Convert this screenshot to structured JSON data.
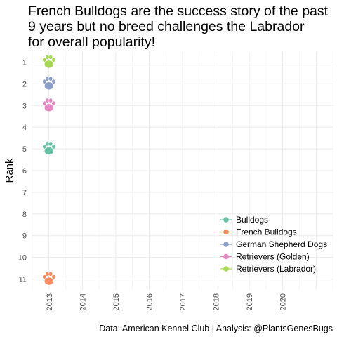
{
  "chart_data": {
    "type": "scatter",
    "title_lines": [
      "French Bulldogs are the success story of the past",
      "9 years but no breed challenges the Labrador",
      "for overall popularity!"
    ],
    "ylabel": "Rank",
    "xlabel": "",
    "caption": "Data: American Kennel Club | Analysis: @PlantsGenesBugs",
    "x_ticks": [
      "2013",
      "2014",
      "2015",
      "2016",
      "2017",
      "2018",
      "2019",
      "2020"
    ],
    "y_ticks": [
      "1",
      "2",
      "3",
      "4",
      "5",
      "6",
      "7",
      "8",
      "9",
      "10",
      "11"
    ],
    "xlim": [
      2012.5,
      2021.5
    ],
    "ylim": [
      0.5,
      11.5
    ],
    "y_reversed": true,
    "grid": true,
    "marker": "paw-print",
    "legend_position": "bottom-right",
    "series": [
      {
        "name": "Bulldogs",
        "color": "#66c2a5",
        "points": [
          {
            "x": 2013,
            "y": 5
          }
        ]
      },
      {
        "name": "French Bulldogs",
        "color": "#fc8d62",
        "points": [
          {
            "x": 2013,
            "y": 11
          }
        ]
      },
      {
        "name": "German Shepherd Dogs",
        "color": "#8da0cb",
        "points": [
          {
            "x": 2013,
            "y": 2
          }
        ]
      },
      {
        "name": "Retrievers (Golden)",
        "color": "#e78ac3",
        "points": [
          {
            "x": 2013,
            "y": 3
          }
        ]
      },
      {
        "name": "Retrievers (Labrador)",
        "color": "#a6d854",
        "points": [
          {
            "x": 2013,
            "y": 1
          }
        ]
      }
    ]
  }
}
